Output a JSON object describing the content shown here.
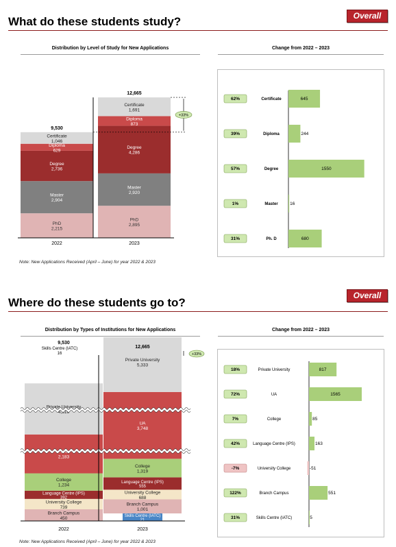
{
  "badge": "Overall",
  "section1": {
    "title": "What do these students study?",
    "chart_title": "Distribution by Level of Study for New Applications",
    "change_title": "Change from 2022 – 2023",
    "note": "Note: New Applications Received (April – June) for year 2022 & 2023"
  },
  "section2": {
    "title": "Where do these students go to?",
    "chart_title": "Distribution by Types of Institutions for New Applications",
    "change_title": "Change from 2022 – 2023",
    "note": "Note: New Applications Received (April – June) for year 2022 & 2023"
  },
  "colors": {
    "accent": "#b8242c",
    "phd": "#e0b4b4",
    "master": "#808080",
    "degree": "#9b2d2d",
    "diploma": "#c94a4a",
    "certificate": "#d9d9d9",
    "green_bar": "#a9cf7a",
    "green_pill": "#cfe8b0",
    "red_pill": "#efc4c4"
  },
  "chart_data": [
    {
      "type": "bar",
      "stacked": true,
      "title": "Distribution by Level of Study for New Applications",
      "categories": [
        "2022",
        "2023"
      ],
      "totals": [
        "9,530",
        "12,665"
      ],
      "growth_label": "+33%",
      "series": [
        {
          "name": "PhD",
          "values": [
            2215,
            2895
          ],
          "labels": [
            "2,215",
            "2,895"
          ]
        },
        {
          "name": "Master",
          "values": [
            2904,
            2920
          ],
          "labels": [
            "2,904",
            "2,920"
          ]
        },
        {
          "name": "Degree",
          "values": [
            2736,
            4286
          ],
          "labels": [
            "2,736",
            "4,286"
          ]
        },
        {
          "name": "Diploma",
          "values": [
            629,
            873
          ],
          "labels": [
            "629",
            "873"
          ]
        },
        {
          "name": "Certificate",
          "values": [
            1046,
            1691
          ],
          "labels": [
            "1,046",
            "1,691"
          ]
        }
      ]
    },
    {
      "type": "bar",
      "orientation": "horizontal",
      "title": "Change from 2022 – 2023",
      "categories": [
        "Certificate",
        "Diploma",
        "Degree",
        "Master",
        "Ph. D"
      ],
      "values": [
        645,
        244,
        1550,
        16,
        680
      ],
      "pct": [
        "62%",
        "39%",
        "57%",
        "1%",
        "31%"
      ]
    },
    {
      "type": "bar",
      "stacked": true,
      "broken_axis": true,
      "title": "Distribution by Types of Institutions for New Applications",
      "categories": [
        "2022",
        "2023"
      ],
      "totals": [
        "9,530",
        "12,665"
      ],
      "growth_label": "+33%",
      "series": [
        {
          "name": "Branch Campus",
          "values": [
            450,
            1001
          ],
          "labels": [
            "450",
            "1,001"
          ]
        },
        {
          "name": "University College",
          "values": [
            739,
            688
          ],
          "labels": [
            "739",
            "688"
          ]
        },
        {
          "name": "Language Centre (IPS)",
          "values": [
            392,
            555
          ],
          "labels": [
            "392",
            "555"
          ]
        },
        {
          "name": "College",
          "values": [
            1234,
            1319
          ],
          "labels": [
            "1,234",
            "1,319"
          ]
        },
        {
          "name": "UA",
          "values": [
            2183,
            3748
          ],
          "labels": [
            "2,183",
            "3,748"
          ]
        },
        {
          "name": "Private University",
          "values": [
            4516,
            5333
          ],
          "labels": [
            "4,516",
            "5,333"
          ]
        },
        {
          "name": "Skills Centre (IATC)",
          "values": [
            16,
            21
          ],
          "labels": [
            "16",
            "21"
          ]
        }
      ]
    },
    {
      "type": "bar",
      "orientation": "horizontal",
      "title": "Change from 2022 – 2023",
      "categories": [
        "Private University",
        "UA",
        "College",
        "Language Centre (IPS)",
        "University College",
        "Branch Campus",
        "Skills Centre (IATC)"
      ],
      "values": [
        817,
        1565,
        85,
        163,
        -51,
        551,
        5
      ],
      "pct": [
        "18%",
        "72%",
        "7%",
        "42%",
        "-7%",
        "122%",
        "31%"
      ]
    }
  ]
}
